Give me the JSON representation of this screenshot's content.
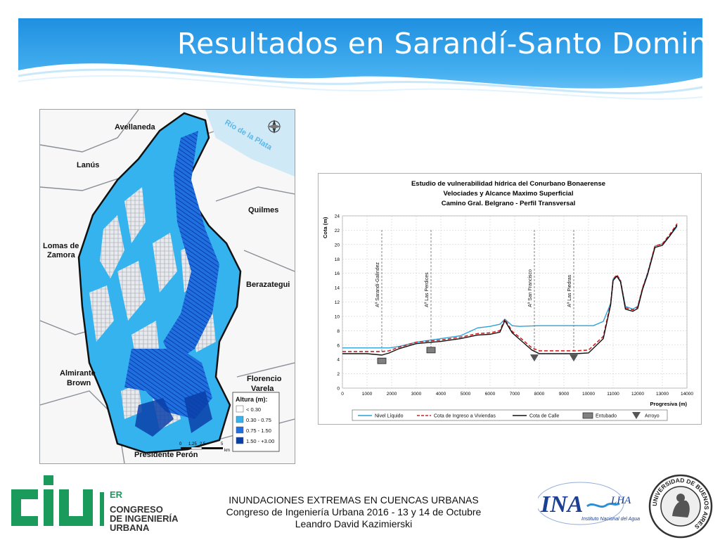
{
  "slide": {
    "title": "Resultados en Sarandí-Santo Domingo"
  },
  "map": {
    "river_label": "Río de la Plata",
    "places": [
      "Avellaneda",
      "Lanús",
      "Quilmes",
      "Lomas de",
      "Zamora",
      "Berazategui",
      "Almirante",
      "Brown",
      "Florencio",
      "Varela",
      "Presidente Perón"
    ],
    "legend": {
      "title": "Altura (m):",
      "items": [
        {
          "label": "< 0.30",
          "color": "#ffffff"
        },
        {
          "label": "0.30 - 0.75",
          "color": "#35b3ee"
        },
        {
          "label": "0.75 - 1.50",
          "color": "#1f6fe0"
        },
        {
          "label": "1.50 - +3.00",
          "color": "#0b3fa8"
        }
      ]
    },
    "scale": {
      "ticks": [
        "0",
        "1.25",
        "2.5",
        "5"
      ],
      "unit": "km"
    }
  },
  "chart_data": {
    "type": "line",
    "title": "Estudio de vulnerabilidad hídrica del Conurbano Bonaerense",
    "subtitle1": "Velociades y Alcance Maximo Superficial",
    "subtitle2": "Camino Gral. Belgrano - Perfil Transversal",
    "xlabel": "Progresiva (m)",
    "ylabel": "Cota (m)",
    "xlim": [
      0,
      14000
    ],
    "ylim": [
      0,
      24
    ],
    "xticks": [
      0,
      1000,
      2000,
      3000,
      4000,
      5000,
      6000,
      7000,
      8000,
      9000,
      10000,
      11000,
      12000,
      13000,
      14000
    ],
    "yticks": [
      0,
      2,
      4,
      6,
      8,
      10,
      12,
      14,
      16,
      18,
      20,
      22,
      24
    ],
    "grid": true,
    "legend_position": "bottom",
    "series": [
      {
        "name": "Nivel Líquido",
        "color": "#2aa3d8",
        "style": "solid",
        "x": [
          0,
          1000,
          1500,
          1900,
          2300,
          3000,
          4000,
          4800,
          5500,
          6000,
          6400,
          6600,
          6900,
          7200,
          8000,
          9000,
          9800,
          10200,
          10600,
          10900,
          11000,
          11150,
          11300,
          11500,
          11800,
          12000,
          12200,
          12400,
          12700,
          13000,
          13300,
          13600
        ],
        "y": [
          5.6,
          5.6,
          5.6,
          5.6,
          5.8,
          6.4,
          6.9,
          7.3,
          8.4,
          8.6,
          8.9,
          9.6,
          8.7,
          8.6,
          8.7,
          8.7,
          8.7,
          8.7,
          9.3,
          11.8,
          15.2,
          15.6,
          15.0,
          11.4,
          11.0,
          11.4,
          14.0,
          16.0,
          19.8,
          20.1,
          21.2,
          22.5
        ]
      },
      {
        "name": "Cota de Ingreso a Viviendas",
        "color": "#cc2222",
        "style": "dashed",
        "x": [
          0,
          1000,
          1600,
          1900,
          2300,
          3000,
          4000,
          4800,
          5500,
          6000,
          6400,
          6600,
          6900,
          7300,
          7700,
          8000,
          8500,
          9000,
          9500,
          10000,
          10600,
          10900,
          11000,
          11150,
          11300,
          11500,
          11800,
          12000,
          12200,
          12400,
          12700,
          13000,
          13300,
          13600
        ],
        "y": [
          5.1,
          5.1,
          5.1,
          5.2,
          5.7,
          6.4,
          6.7,
          7.1,
          7.6,
          7.7,
          8.0,
          9.6,
          7.9,
          6.8,
          5.6,
          5.2,
          5.2,
          5.2,
          5.2,
          5.3,
          7.2,
          11.8,
          15.2,
          15.8,
          15.0,
          11.2,
          10.9,
          11.3,
          14.0,
          16.0,
          19.8,
          20.1,
          21.4,
          22.9
        ]
      },
      {
        "name": "Cota de Calle",
        "color": "#111111",
        "style": "solid",
        "x": [
          0,
          1000,
          1600,
          1900,
          2300,
          3000,
          4000,
          4800,
          5500,
          6000,
          6400,
          6600,
          6900,
          7300,
          7700,
          8000,
          8500,
          9000,
          9500,
          10000,
          10600,
          10900,
          11000,
          11150,
          11300,
          11500,
          11800,
          12000,
          12200,
          12400,
          12700,
          13000,
          13300,
          13600
        ],
        "y": [
          4.8,
          4.8,
          4.6,
          4.9,
          5.5,
          6.2,
          6.5,
          6.9,
          7.4,
          7.5,
          7.8,
          9.4,
          7.7,
          6.5,
          5.3,
          4.8,
          4.8,
          4.8,
          4.8,
          4.9,
          6.9,
          11.6,
          15.0,
          15.6,
          14.8,
          11.0,
          10.7,
          11.1,
          13.8,
          15.8,
          19.6,
          19.9,
          21.2,
          22.7
        ]
      },
      {
        "name": "Entubado",
        "color": "#808080",
        "style": "marker-square",
        "x": [
          1600,
          3600
        ],
        "y": [
          3.8,
          5.3
        ]
      },
      {
        "name": "Arroyo",
        "color": "#555555",
        "style": "marker-triangle",
        "x": [
          7800,
          9400
        ],
        "y": [
          4.2,
          4.2
        ]
      }
    ],
    "annotations": [
      {
        "x": 1600,
        "label": "Aº Sarandí-Galíndez"
      },
      {
        "x": 3600,
        "label": "Aº Las Perdices"
      },
      {
        "x": 7800,
        "label": "Aº San Francisco"
      },
      {
        "x": 9400,
        "label": "Aº Las Piedras"
      }
    ]
  },
  "footer": {
    "line1": "INUNDACIONES EXTREMAS EN CUENCAS URBANAS",
    "line2": "Congreso de Ingeniería Urbana 2016 - 13 y 14 de Octubre",
    "line3": "Leandro David Kazimierski"
  },
  "logos": {
    "ciu": {
      "brand": "ciu",
      "ordinal": "ER",
      "line1": "CONGRESO",
      "line2": "DE INGENIERÍA",
      "line3": "URBANA",
      "color": "#1a9b5c"
    },
    "ina": {
      "brand": "INA",
      "suffix": "LHA",
      "tagline": "Instituto Nacional del Agua",
      "color": "#1b3f93"
    },
    "uba": {
      "text": "UNIVERSIDAD DE BUENOS AIRES"
    }
  }
}
